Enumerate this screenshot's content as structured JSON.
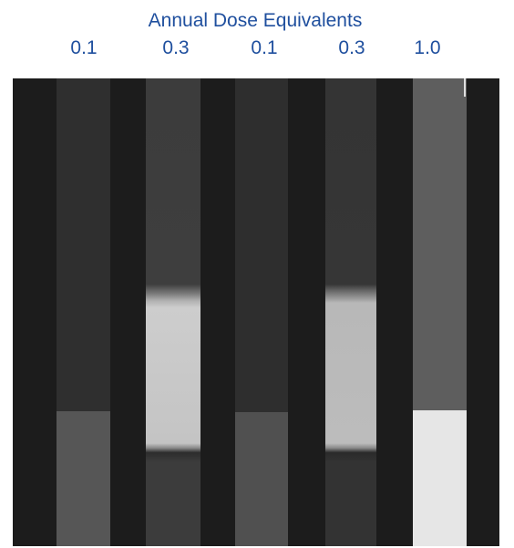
{
  "title": "Annual Dose Equivalents",
  "labels": [
    "0.1",
    "0.3",
    "0.1",
    "0.3",
    "1.0"
  ]
}
